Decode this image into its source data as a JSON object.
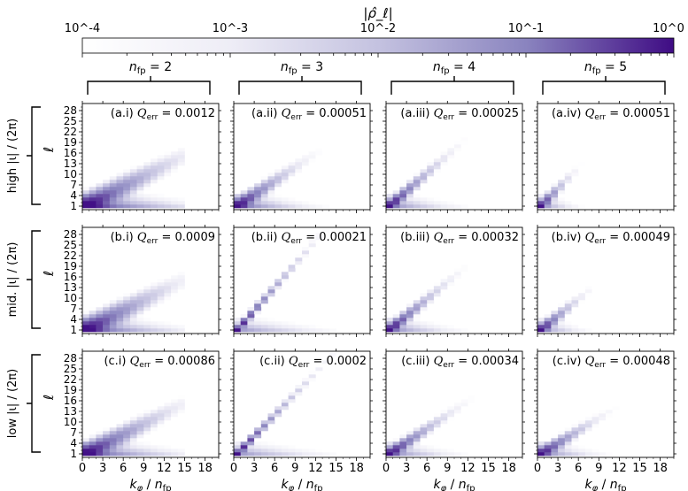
{
  "chart_data": {
    "type": "heatmap",
    "colorbar": {
      "label": "|ρ̂_ℓ|",
      "scale": "log",
      "range": [
        0.0001,
        1
      ],
      "ticks": [
        0.0001,
        0.001,
        0.01,
        0.1,
        1
      ],
      "tick_labels": [
        "10^-4",
        "10^-3",
        "10^-2",
        "10^-1",
        "10^0"
      ],
      "colormap": "white-to-purple"
    },
    "columns": [
      {
        "nfp": "2"
      },
      {
        "nfp": "3"
      },
      {
        "nfp": "4"
      },
      {
        "nfp": "5"
      }
    ],
    "rows": [
      {
        "label": "high |ι| / (2π)"
      },
      {
        "label": "mid. |ι| / (2π)"
      },
      {
        "label": "low |ι| / (2π)"
      }
    ],
    "xlabel": "k_φ / n_fp",
    "ylabel": "ℓ",
    "xticks": [
      0,
      3,
      6,
      9,
      12,
      15,
      18
    ],
    "yticks": [
      1,
      4,
      7,
      10,
      13,
      16,
      19,
      22,
      25,
      28
    ],
    "xlim": [
      0,
      20
    ],
    "ylim": [
      0,
      30
    ],
    "panels": [
      {
        "row": 0,
        "col": 0,
        "id": "(a.i)",
        "Q_err": "0.0012",
        "slope": 1.0,
        "reach": 4.5,
        "spread": 1.6,
        "hstrength": 0.7
      },
      {
        "row": 0,
        "col": 1,
        "id": "(a.ii)",
        "Q_err": "0.00051",
        "slope": 1.3,
        "reach": 3.2,
        "spread": 1.1,
        "hstrength": 0.35
      },
      {
        "row": 0,
        "col": 2,
        "id": "(a.iii)",
        "Q_err": "0.00025",
        "slope": 1.7,
        "reach": 3.2,
        "spread": 0.9,
        "hstrength": 0.2
      },
      {
        "row": 0,
        "col": 3,
        "id": "(a.iv)",
        "Q_err": "0.00051",
        "slope": 2.0,
        "reach": 1.8,
        "spread": 0.9,
        "hstrength": 0.15
      },
      {
        "row": 1,
        "col": 0,
        "id": "(b.i)",
        "Q_err": "0.0009",
        "slope": 1.0,
        "reach": 4.2,
        "spread": 1.6,
        "hstrength": 0.5
      },
      {
        "row": 1,
        "col": 1,
        "id": "(b.ii)",
        "Q_err": "0.00021",
        "slope": 2.2,
        "reach": 4.5,
        "spread": 0.6,
        "hstrength": 0.15
      },
      {
        "row": 1,
        "col": 2,
        "id": "(b.iii)",
        "Q_err": "0.00032",
        "slope": 1.6,
        "reach": 3.2,
        "spread": 0.9,
        "hstrength": 0.2
      },
      {
        "row": 1,
        "col": 3,
        "id": "(b.iv)",
        "Q_err": "0.00049",
        "slope": 1.6,
        "reach": 2.2,
        "spread": 0.9,
        "hstrength": 0.15
      },
      {
        "row": 2,
        "col": 0,
        "id": "(c.i)",
        "Q_err": "0.00086",
        "slope": 1.0,
        "reach": 4.2,
        "spread": 1.4,
        "hstrength": 0.5
      },
      {
        "row": 2,
        "col": 1,
        "id": "(c.ii)",
        "Q_err": "0.0002",
        "slope": 2.0,
        "reach": 4.5,
        "spread": 0.6,
        "hstrength": 0.15
      },
      {
        "row": 2,
        "col": 2,
        "id": "(c.iii)",
        "Q_err": "0.00034",
        "slope": 1.3,
        "reach": 3.2,
        "spread": 0.9,
        "hstrength": 0.2
      },
      {
        "row": 2,
        "col": 3,
        "id": "(c.iv)",
        "Q_err": "0.00048",
        "slope": 1.2,
        "reach": 2.8,
        "spread": 0.9,
        "hstrength": 0.2
      }
    ]
  }
}
